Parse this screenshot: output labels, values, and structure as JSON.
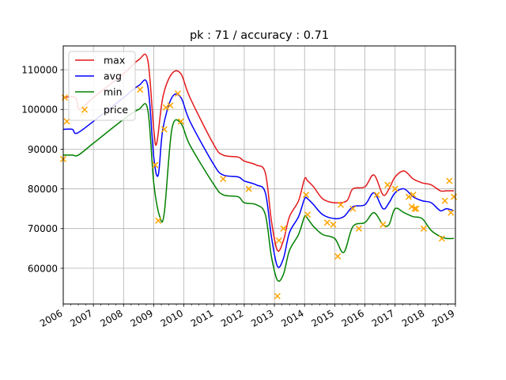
{
  "chart_data": {
    "type": "line",
    "title": "pk : 71 / accuracy : 0.71",
    "xlabel": "",
    "ylabel": "",
    "xlim": [
      2006.0,
      2019.0
    ],
    "ylim": [
      51000,
      116000
    ],
    "grid": true,
    "legend_position": "top-left",
    "x_ticks": [
      2006,
      2007,
      2008,
      2009,
      2010,
      2011,
      2012,
      2013,
      2014,
      2015,
      2016,
      2017,
      2018,
      2019
    ],
    "x_tick_labels": [
      "2006",
      "2007",
      "2008",
      "2009",
      "2010",
      "2011",
      "2012",
      "2013",
      "2014",
      "2015",
      "2016",
      "2017",
      "2018",
      "2019"
    ],
    "y_ticks": [
      60000,
      70000,
      80000,
      90000,
      100000,
      110000
    ],
    "y_tick_labels": [
      "60000",
      "70000",
      "80000",
      "90000",
      "100000",
      "110000"
    ],
    "series": [
      {
        "name": "max",
        "color": "#e41a1c",
        "x": [
          2006.0,
          2006.4,
          2006.55,
          2007.0,
          2008.0,
          2008.5,
          2008.8,
          2009.0,
          2009.1,
          2009.3,
          2009.6,
          2009.9,
          2010.2,
          2011.0,
          2011.3,
          2011.8,
          2012.0,
          2012.4,
          2012.7,
          2012.9,
          2013.1,
          2013.3,
          2013.5,
          2013.8,
          2014.0,
          2014.1,
          2014.3,
          2014.6,
          2015.0,
          2015.4,
          2015.6,
          2016.0,
          2016.3,
          2016.6,
          2016.8,
          2017.0,
          2017.3,
          2017.6,
          2017.9,
          2018.2,
          2018.5,
          2018.7,
          2018.95
        ],
        "y": [
          103000,
          103000,
          100000,
          103000,
          109000,
          112500,
          112500,
          95000,
          91500,
          103000,
          109000,
          109000,
          103000,
          91000,
          88500,
          88000,
          87000,
          86000,
          84000,
          72000,
          64500,
          67000,
          73000,
          77000,
          82500,
          82000,
          80500,
          77500,
          76500,
          77000,
          80000,
          80500,
          83500,
          78500,
          80000,
          83000,
          84500,
          82500,
          81500,
          81000,
          79500,
          79500,
          79500
        ]
      },
      {
        "name": "avg",
        "color": "#0000ff",
        "x": [
          2006.0,
          2006.3,
          2006.45,
          2007.0,
          2008.0,
          2008.5,
          2008.8,
          2009.0,
          2009.15,
          2009.3,
          2009.6,
          2009.9,
          2010.2,
          2011.0,
          2011.3,
          2011.8,
          2012.0,
          2012.4,
          2012.7,
          2012.9,
          2013.1,
          2013.3,
          2013.5,
          2013.8,
          2014.0,
          2014.1,
          2014.3,
          2014.6,
          2015.0,
          2015.3,
          2015.6,
          2016.0,
          2016.3,
          2016.6,
          2016.8,
          2017.0,
          2017.3,
          2017.6,
          2017.9,
          2018.2,
          2018.5,
          2018.7,
          2018.95
        ],
        "y": [
          95000,
          95000,
          94000,
          97000,
          103000,
          106000,
          106000,
          88000,
          83500,
          95000,
          103000,
          103000,
          97000,
          86000,
          83500,
          83000,
          82000,
          81000,
          79000,
          68000,
          60500,
          62500,
          69000,
          73000,
          77500,
          77500,
          76000,
          73500,
          72500,
          73000,
          75500,
          76000,
          79000,
          75000,
          76500,
          79000,
          80000,
          78000,
          77000,
          76500,
          74500,
          75000,
          74500
        ]
      },
      {
        "name": "min",
        "color": "#008000",
        "x": [
          2006.0,
          2006.3,
          2006.5,
          2007.0,
          2008.0,
          2008.5,
          2008.8,
          2009.0,
          2009.2,
          2009.35,
          2009.6,
          2009.9,
          2010.2,
          2011.0,
          2011.3,
          2011.8,
          2012.0,
          2012.4,
          2012.7,
          2012.9,
          2013.1,
          2013.3,
          2013.5,
          2013.8,
          2014.0,
          2014.1,
          2014.3,
          2014.6,
          2015.0,
          2015.3,
          2015.6,
          2016.0,
          2016.3,
          2016.6,
          2016.8,
          2017.0,
          2017.3,
          2017.6,
          2017.9,
          2018.2,
          2018.5,
          2018.7,
          2018.95
        ],
        "y": [
          88500,
          88500,
          88500,
          91500,
          97500,
          100000,
          100000,
          81500,
          73000,
          74000,
          95000,
          96500,
          91000,
          81000,
          78500,
          78000,
          76500,
          76000,
          73500,
          63000,
          57000,
          58500,
          64500,
          68500,
          73000,
          72500,
          70500,
          68500,
          67500,
          64000,
          70500,
          71500,
          74000,
          71000,
          71000,
          75000,
          74000,
          73000,
          72500,
          69500,
          68000,
          67500,
          67500
        ]
      },
      {
        "name": "price",
        "type": "scatter",
        "marker": "x",
        "color": "#ffa500",
        "x": [
          2006.0,
          2006.05,
          2006.12,
          2006.65,
          2008.55,
          2009.05,
          2009.15,
          2009.35,
          2009.4,
          2009.55,
          2009.8,
          2009.9,
          2011.3,
          2012.15,
          2013.1,
          2013.15,
          2013.3,
          2014.05,
          2014.1,
          2014.75,
          2014.95,
          2015.1,
          2015.2,
          2015.6,
          2015.8,
          2016.4,
          2016.6,
          2016.75,
          2017.0,
          2017.45,
          2017.55,
          2017.6,
          2017.65,
          2017.7,
          2017.95,
          2018.55,
          2018.65,
          2018.8,
          2018.85,
          2018.95
        ],
        "y": [
          87500,
          103000,
          97000,
          99000,
          105000,
          86000,
          72000,
          95000,
          100500,
          101000,
          104000,
          97000,
          82500,
          80000,
          53000,
          67000,
          70000,
          78500,
          73500,
          71500,
          71000,
          63000,
          76000,
          75000,
          70000,
          78500,
          71000,
          81000,
          80000,
          78000,
          75500,
          78500,
          75000,
          75000,
          70000,
          67500,
          77000,
          82000,
          74000,
          78000
        ]
      }
    ]
  }
}
